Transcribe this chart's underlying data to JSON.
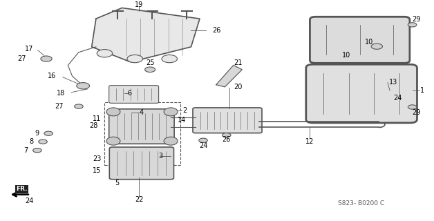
{
  "bg_color": "#ffffff",
  "line_color": "#555555",
  "diagram_code": "S823- B0200 C",
  "fr_label": "FR."
}
